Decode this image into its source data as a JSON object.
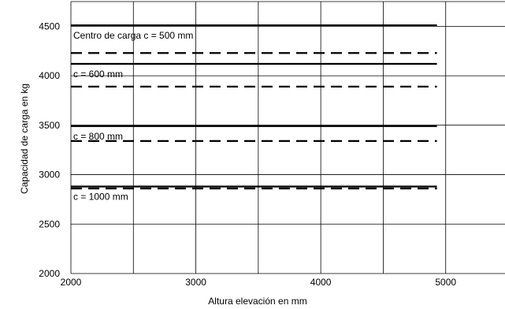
{
  "chart_data": {
    "type": "line",
    "xlabel": "Altura elevación en mm",
    "ylabel": "Capacidad de carga en kg",
    "xlim": [
      2000,
      5500
    ],
    "ylim": [
      2000,
      4750
    ],
    "x_ticks": [
      "2000",
      "3000",
      "4000",
      "5000"
    ],
    "y_ticks": [
      "2000",
      "2500",
      "3000",
      "3500",
      "4000",
      "4500"
    ],
    "grid": true,
    "series": [
      {
        "label": "Centro de carga  c = 500 mm",
        "style": "solid",
        "x": [
          2000,
          4930
        ],
        "y": [
          4510,
          4510
        ]
      },
      {
        "style": "dashed",
        "x": [
          2000,
          4930
        ],
        "y": [
          4230,
          4230
        ]
      },
      {
        "label": "c = 600 mm",
        "style": "solid",
        "x": [
          2000,
          4930
        ],
        "y": [
          4120,
          4120
        ]
      },
      {
        "style": "dashed",
        "x": [
          2000,
          4930
        ],
        "y": [
          3890,
          3890
        ]
      },
      {
        "label": "c = 800 mm",
        "style": "solid",
        "x": [
          2000,
          4930
        ],
        "y": [
          3490,
          3490
        ]
      },
      {
        "style": "dashed",
        "x": [
          2000,
          4930
        ],
        "y": [
          3340,
          3340
        ]
      },
      {
        "label": "c = 1000 mm",
        "style": "solid",
        "x": [
          2000,
          4930
        ],
        "y": [
          2880,
          2880
        ]
      },
      {
        "style": "dashed",
        "x": [
          2000,
          4930
        ],
        "y": [
          2860,
          2860
        ]
      }
    ]
  }
}
